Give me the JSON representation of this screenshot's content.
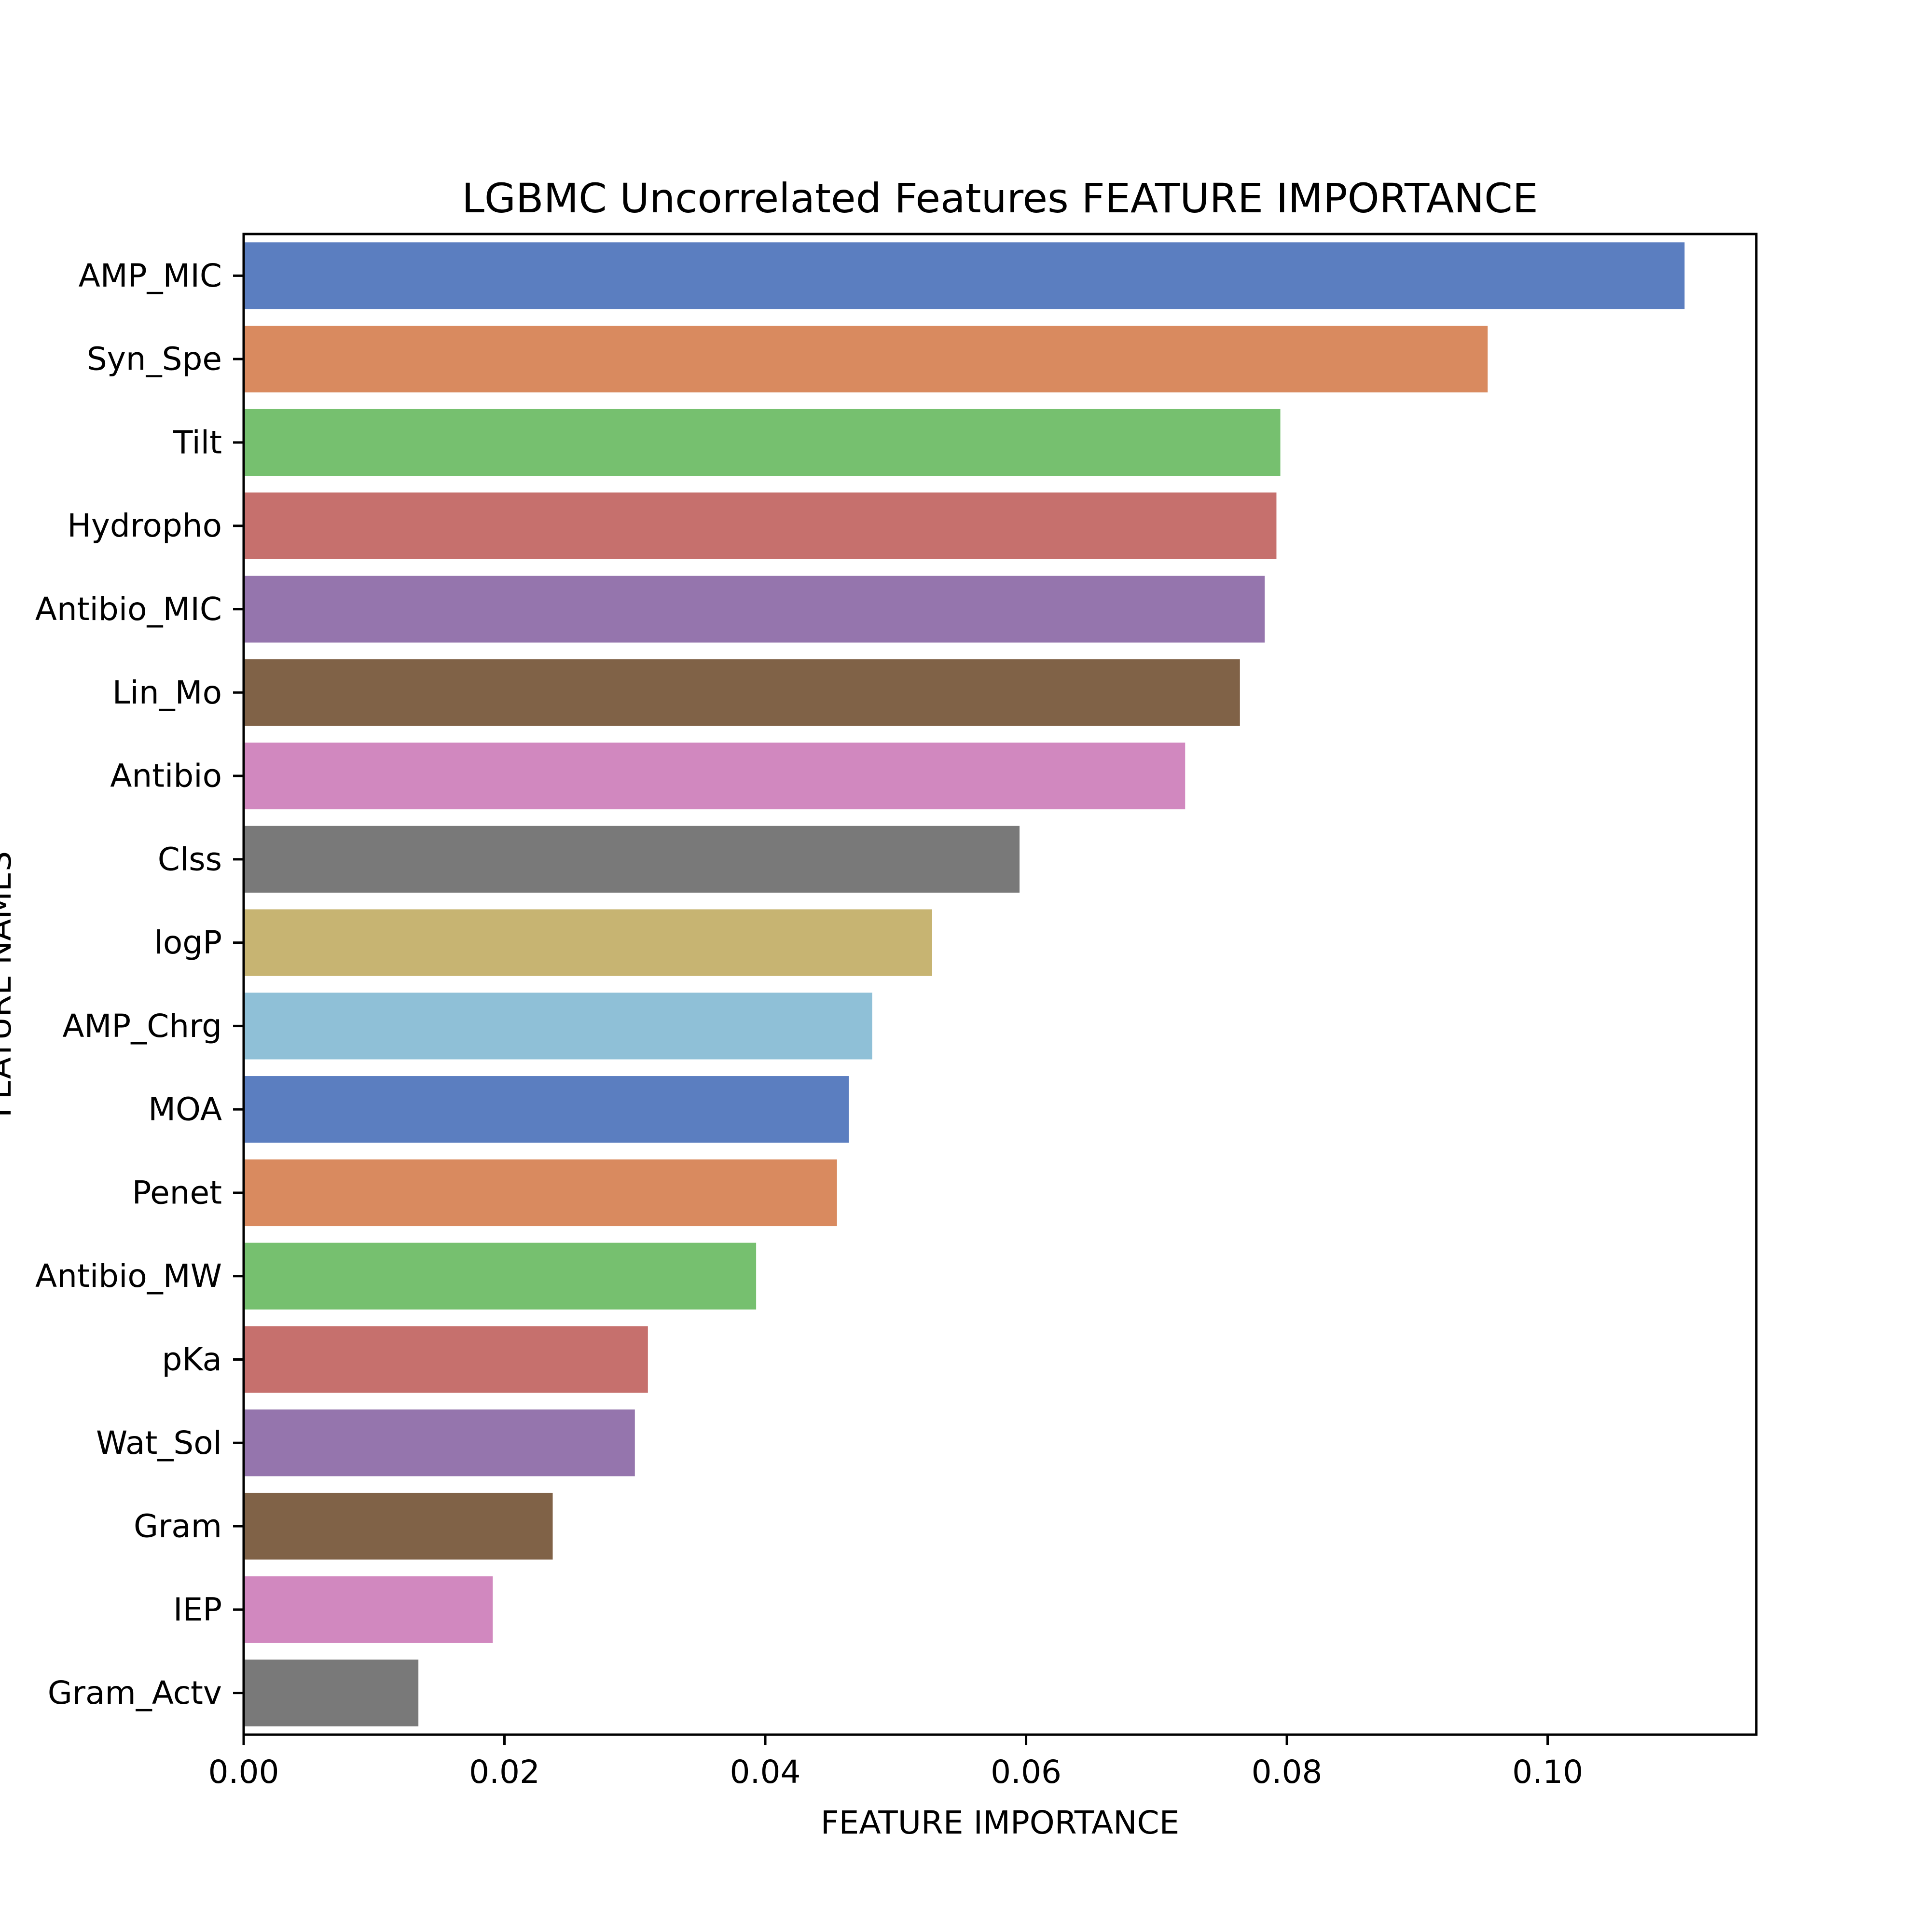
{
  "chart_data": {
    "type": "bar",
    "orientation": "horizontal",
    "title": "LGBMC Uncorrelated Features FEATURE IMPORTANCE",
    "xlabel": "FEATURE IMPORTANCE",
    "ylabel": "FEATURE NAMES",
    "xlim": [
      0,
      0.116
    ],
    "xticks": [
      0.0,
      0.02,
      0.04,
      0.06,
      0.08,
      0.1
    ],
    "xtick_labels": [
      "0.00",
      "0.02",
      "0.04",
      "0.06",
      "0.08",
      "0.10"
    ],
    "grid": false,
    "legend": "none",
    "categories": [
      "AMP_MIC",
      "Syn_Spe",
      "Tilt",
      "Hydropho",
      "Antibio_MIC",
      "Lin_Mo",
      "Antibio",
      "Clss",
      "logP",
      "AMP_Chrg",
      "MOA",
      "Penet",
      "Antibio_MW",
      "pKa",
      "Wat_Sol",
      "Gram",
      "IEP",
      "Gram_Actv"
    ],
    "values": [
      0.1105,
      0.0954,
      0.0795,
      0.0792,
      0.0783,
      0.0764,
      0.0722,
      0.0595,
      0.0528,
      0.0482,
      0.0464,
      0.0455,
      0.0393,
      0.031,
      0.03,
      0.0237,
      0.0191,
      0.0134
    ],
    "colors": [
      "#5b7ec0",
      "#d98a5f",
      "#76c06f",
      "#c6706d",
      "#9575ad",
      "#806247",
      "#d188bf",
      "#797979",
      "#c7b472",
      "#8fc0d7",
      "#5b7ec0",
      "#d98a5f",
      "#76c06f",
      "#c6706d",
      "#9575ad",
      "#806247",
      "#d188bf",
      "#797979"
    ]
  }
}
